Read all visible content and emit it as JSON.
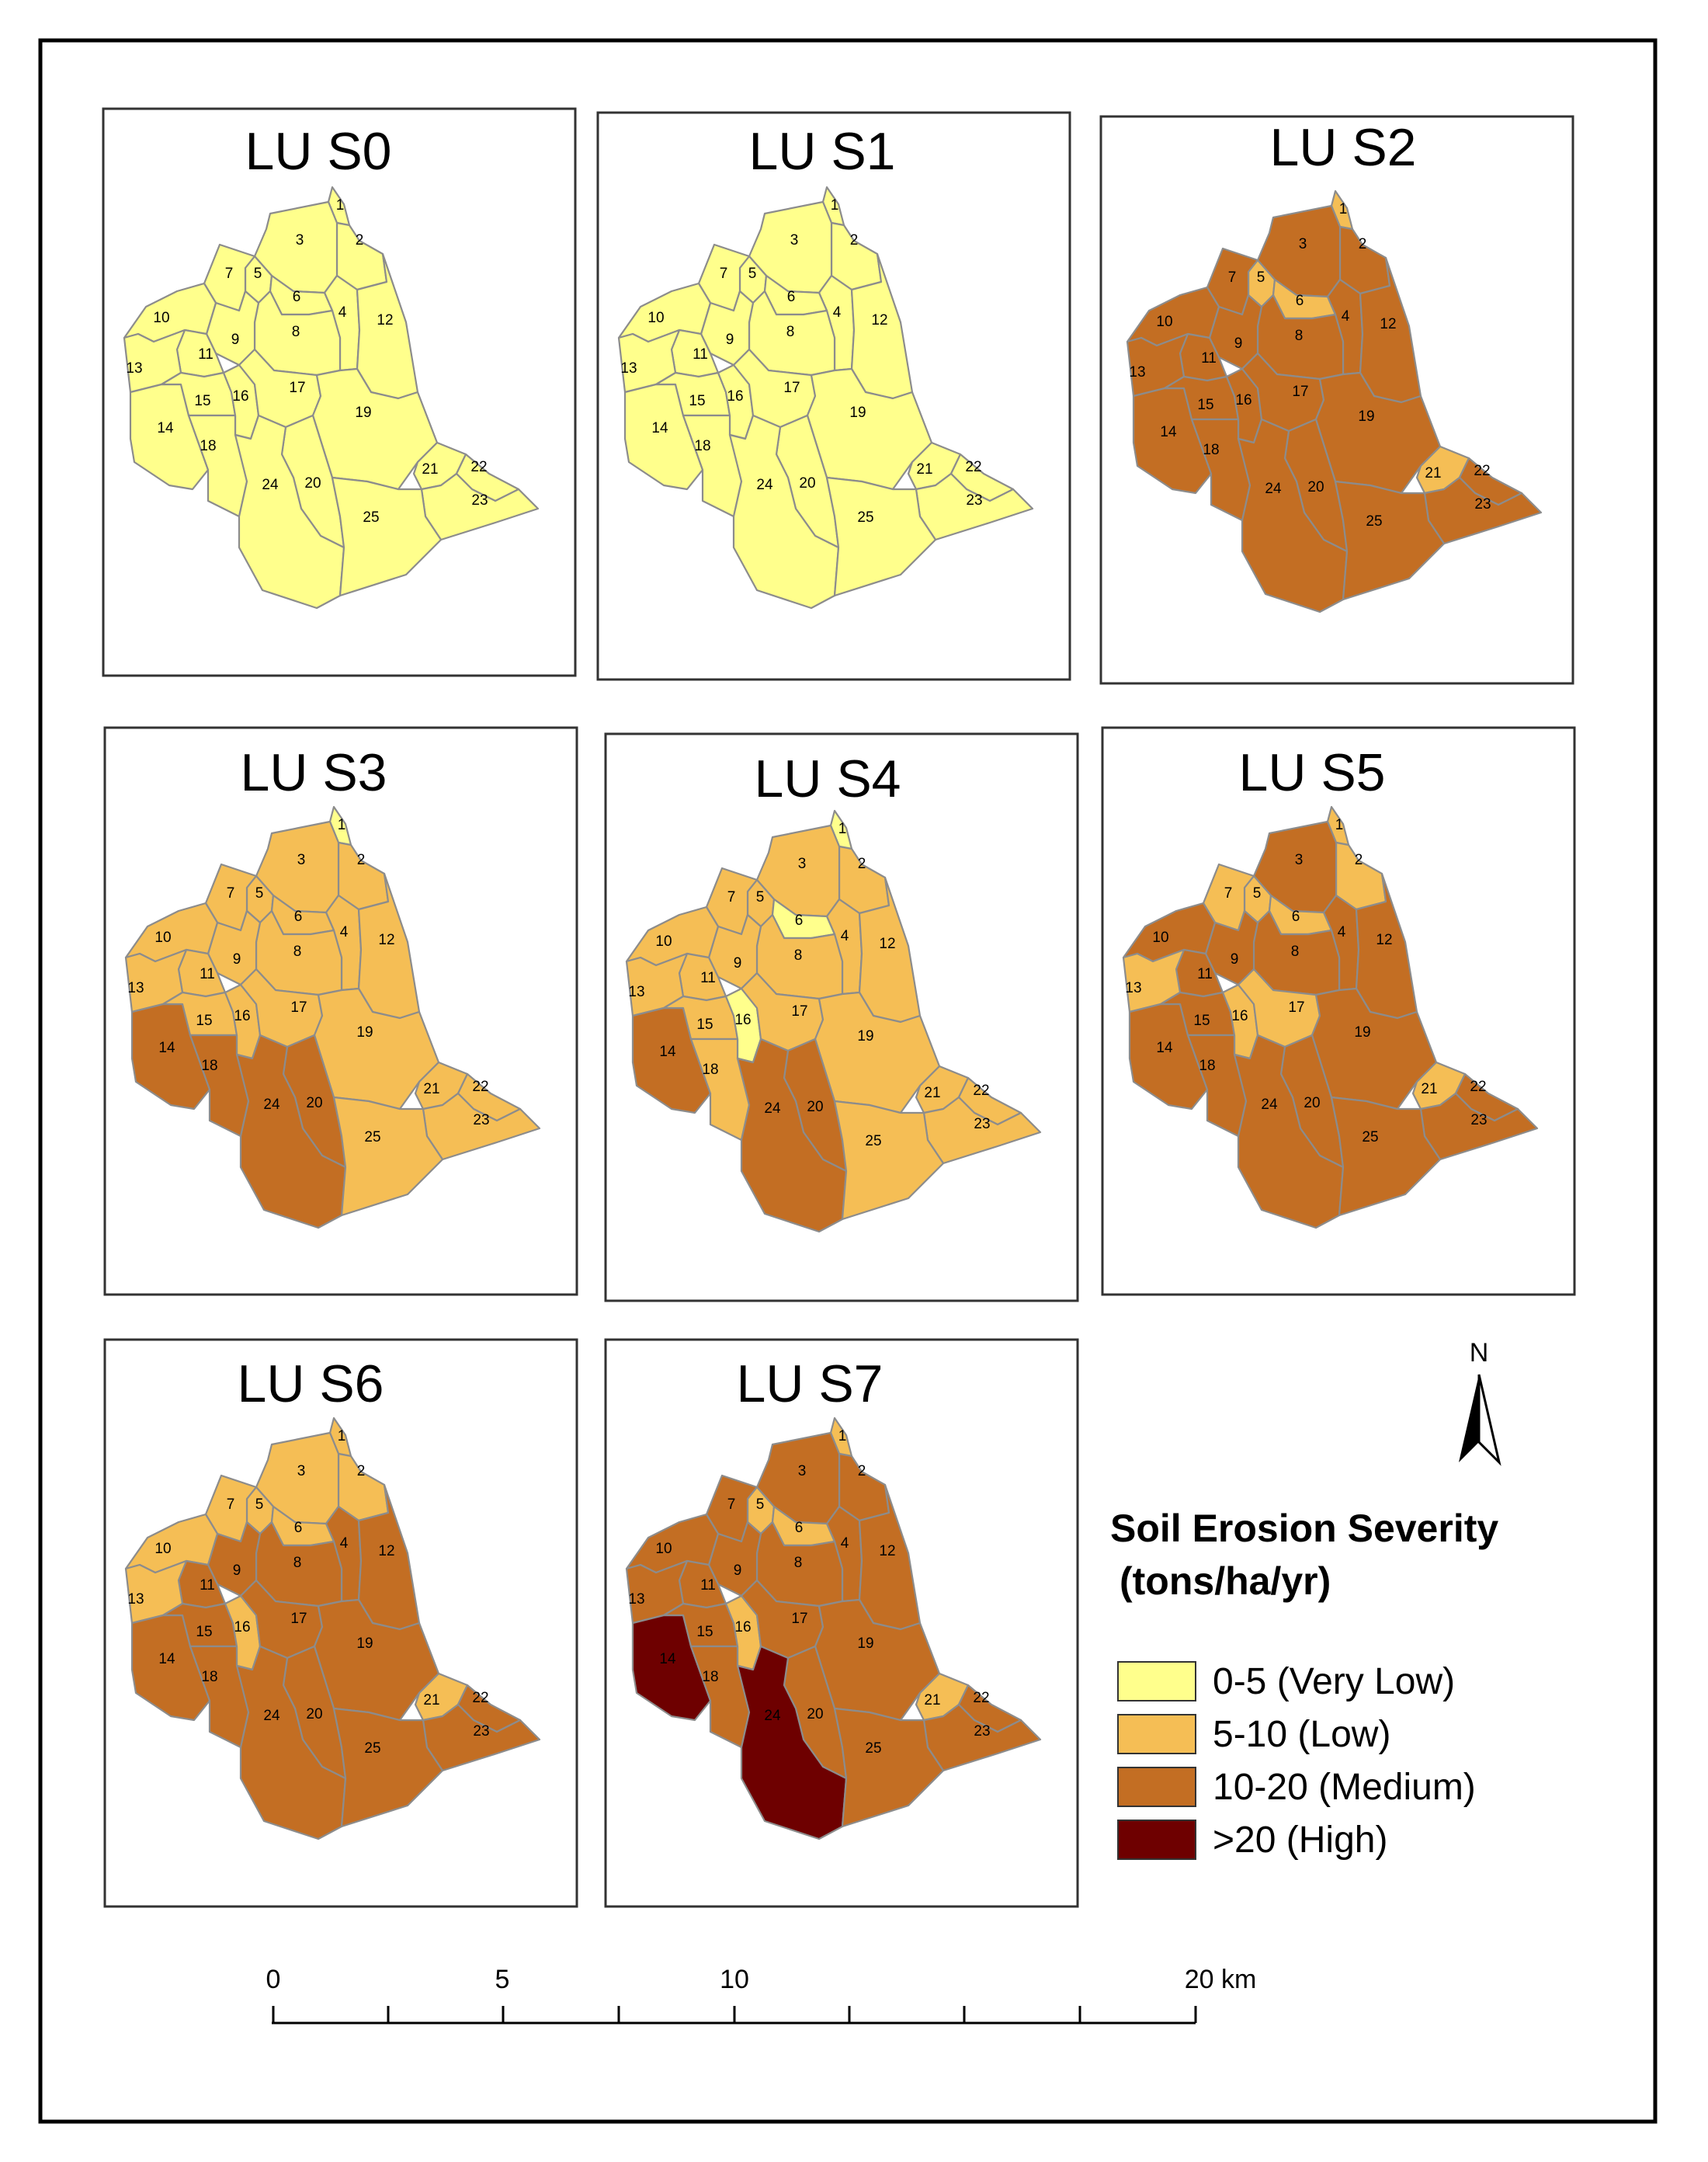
{
  "legend": {
    "title_line1": "Soil Erosion Severity",
    "title_line2": "(tons/ha/yr)",
    "classes": [
      {
        "key": "vl",
        "label": "0-5 (Very Low)",
        "color": "#FFFF8C"
      },
      {
        "key": "l",
        "label": "5-10 (Low)",
        "color": "#F5BE55"
      },
      {
        "key": "m",
        "label": "10-20 (Medium)",
        "color": "#C36E23"
      },
      {
        "key": "h",
        "label": ">20 (High)",
        "color": "#6E0000"
      }
    ]
  },
  "north_arrow": {
    "label": "N",
    "icon": "north-arrow-icon"
  },
  "scale_bar": {
    "ticks": [
      "0",
      "5",
      "10",
      "20 km"
    ]
  },
  "boundary_color": "#8C8C8C",
  "panels": [
    {
      "title": "LU S0",
      "classes": [
        "vl",
        "vl",
        "vl",
        "vl",
        "vl",
        "vl",
        "vl",
        "vl",
        "vl",
        "vl",
        "vl",
        "vl",
        "vl",
        "vl",
        "vl",
        "vl",
        "vl",
        "vl",
        "vl",
        "vl",
        "vl",
        "vl",
        "vl",
        "vl",
        "vl"
      ]
    },
    {
      "title": "LU S1",
      "classes": [
        "vl",
        "vl",
        "vl",
        "vl",
        "vl",
        "vl",
        "vl",
        "vl",
        "vl",
        "vl",
        "vl",
        "vl",
        "vl",
        "vl",
        "vl",
        "vl",
        "vl",
        "vl",
        "vl",
        "vl",
        "vl",
        "vl",
        "vl",
        "vl",
        "vl"
      ]
    },
    {
      "title": "LU S2",
      "classes": [
        "l",
        "m",
        "m",
        "m",
        "l",
        "l",
        "m",
        "m",
        "m",
        "m",
        "m",
        "m",
        "m",
        "m",
        "m",
        "m",
        "m",
        "m",
        "m",
        "m",
        "l",
        "m",
        "m",
        "m",
        "m"
      ]
    },
    {
      "title": "LU S3",
      "classes": [
        "vl",
        "l",
        "l",
        "l",
        "l",
        "l",
        "l",
        "l",
        "l",
        "l",
        "l",
        "l",
        "l",
        "m",
        "l",
        "l",
        "l",
        "m",
        "l",
        "m",
        "l",
        "l",
        "l",
        "m",
        "l"
      ]
    },
    {
      "title": "LU S4",
      "classes": [
        "vl",
        "l",
        "l",
        "l",
        "l",
        "vl",
        "l",
        "l",
        "l",
        "l",
        "l",
        "l",
        "l",
        "m",
        "l",
        "vl",
        "l",
        "l",
        "l",
        "m",
        "l",
        "l",
        "l",
        "m",
        "l"
      ]
    },
    {
      "title": "LU S5",
      "classes": [
        "l",
        "l",
        "m",
        "m",
        "l",
        "l",
        "l",
        "m",
        "m",
        "m",
        "m",
        "m",
        "l",
        "m",
        "m",
        "l",
        "l",
        "m",
        "m",
        "m",
        "l",
        "m",
        "m",
        "m",
        "m"
      ]
    },
    {
      "title": "LU S6",
      "classes": [
        "l",
        "l",
        "l",
        "m",
        "l",
        "l",
        "l",
        "m",
        "m",
        "l",
        "m",
        "m",
        "l",
        "m",
        "m",
        "l",
        "m",
        "m",
        "m",
        "m",
        "l",
        "m",
        "m",
        "m",
        "m"
      ]
    },
    {
      "title": "LU S7",
      "classes": [
        "l",
        "m",
        "m",
        "m",
        "l",
        "l",
        "m",
        "m",
        "m",
        "m",
        "m",
        "m",
        "m",
        "h",
        "m",
        "l",
        "m",
        "m",
        "m",
        "m",
        "l",
        "m",
        "m",
        "h",
        "m"
      ]
    }
  ],
  "subbasin_numbers": [
    "1",
    "2",
    "3",
    "4",
    "5",
    "6",
    "7",
    "8",
    "9",
    "10",
    "11",
    "12",
    "13",
    "14",
    "15",
    "16",
    "17",
    "18",
    "19",
    "20",
    "21",
    "22",
    "23",
    "24",
    "25"
  ]
}
